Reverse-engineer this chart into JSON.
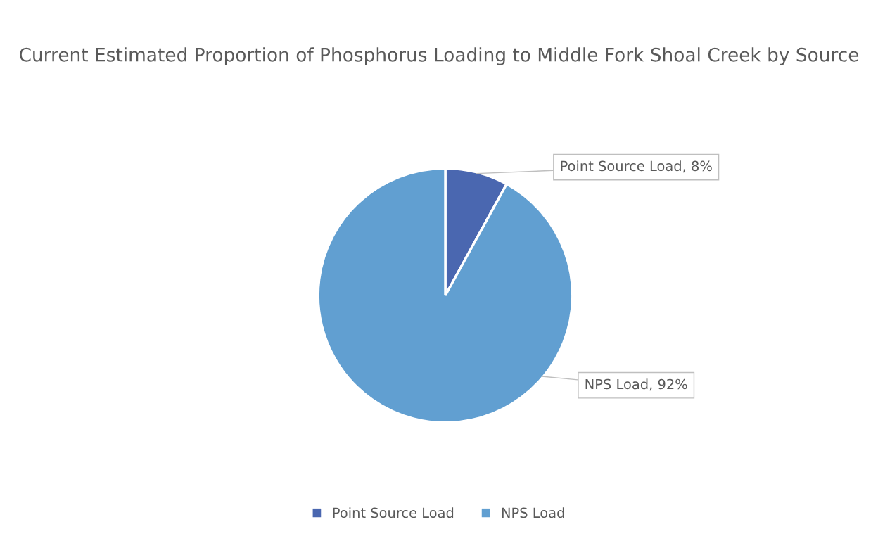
{
  "chart_data": {
    "type": "pie",
    "title": "Current Estimated Proportion of Phosphorus Loading to Middle Fork Shoal Creek by Source",
    "categories": [
      "Point Source Load",
      "NPS Load"
    ],
    "values": [
      8,
      92
    ],
    "colors": [
      "#4a67b0",
      "#619fd1"
    ],
    "value_labels": [
      "Point Source Load, 8%",
      "NPS Load, 92%"
    ],
    "legend": "bottom"
  }
}
